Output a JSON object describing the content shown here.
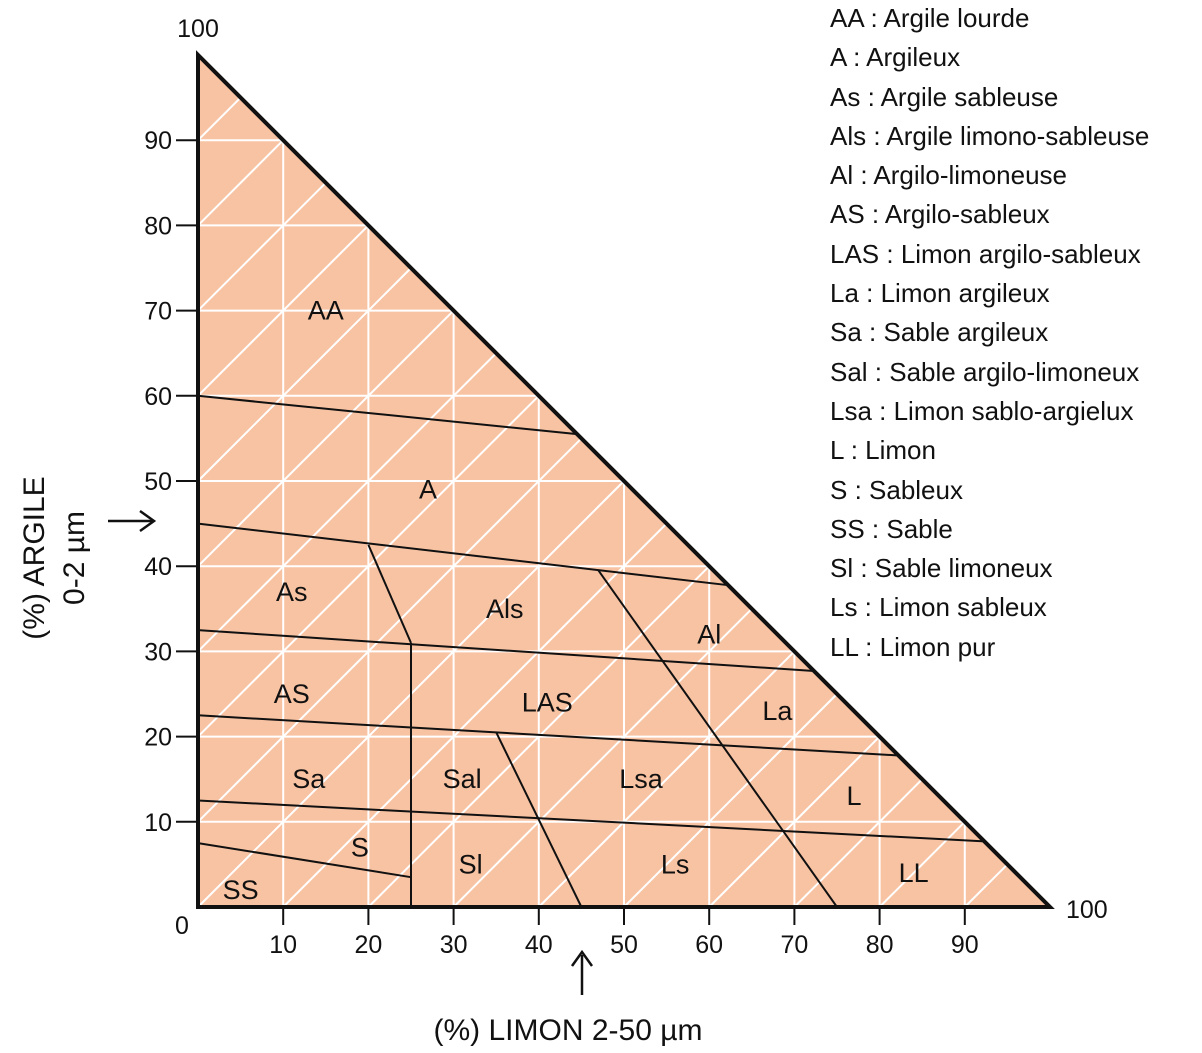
{
  "colors": {
    "fill": "#F8C3A3",
    "gridline": "#FFFFFF",
    "boundary": "#111111"
  },
  "axes": {
    "y_title_line1": "(%) ARGILE",
    "y_title_line2": "0-2 µm",
    "x_title": "(%) LIMON 2-50 µm",
    "y_ticks": [
      "10",
      "20",
      "30",
      "40",
      "50",
      "60",
      "70",
      "80",
      "90"
    ],
    "x_ticks": [
      "10",
      "20",
      "30",
      "40",
      "50",
      "60",
      "70",
      "80",
      "90"
    ],
    "origin": "0",
    "y_max": "100",
    "x_max": "100"
  },
  "zones": [
    {
      "code": "AA",
      "x": 15,
      "y": 70
    },
    {
      "code": "A",
      "x": 27,
      "y": 49
    },
    {
      "code": "As",
      "x": 11,
      "y": 37
    },
    {
      "code": "Als",
      "x": 36,
      "y": 35
    },
    {
      "code": "Al",
      "x": 60,
      "y": 32
    },
    {
      "code": "AS",
      "x": 11,
      "y": 25
    },
    {
      "code": "LAS",
      "x": 41,
      "y": 24
    },
    {
      "code": "La",
      "x": 68,
      "y": 23
    },
    {
      "code": "Sa",
      "x": 13,
      "y": 15
    },
    {
      "code": "Sal",
      "x": 31,
      "y": 15
    },
    {
      "code": "Lsa",
      "x": 52,
      "y": 15
    },
    {
      "code": "L",
      "x": 77,
      "y": 13
    },
    {
      "code": "S",
      "x": 19,
      "y": 7
    },
    {
      "code": "Sl",
      "x": 32,
      "y": 5
    },
    {
      "code": "Ls",
      "x": 56,
      "y": 5
    },
    {
      "code": "LL",
      "x": 84,
      "y": 4
    },
    {
      "code": "SS",
      "x": 5,
      "y": 2
    }
  ],
  "boundaries": [
    [
      [
        0,
        60
      ],
      [
        44.5,
        55.5
      ]
    ],
    [
      [
        0,
        45
      ],
      [
        62,
        37.8
      ]
    ],
    [
      [
        0,
        32.5
      ],
      [
        72.3,
        27.7
      ]
    ],
    [
      [
        0,
        22.5
      ],
      [
        82,
        17.8
      ]
    ],
    [
      [
        0,
        12.5
      ],
      [
        92.3,
        7.7
      ]
    ],
    [
      [
        0,
        7.5
      ],
      [
        25,
        3.5
      ]
    ],
    [
      [
        20,
        42.5
      ],
      [
        25,
        31
      ]
    ],
    [
      [
        25,
        31
      ],
      [
        25,
        0
      ]
    ],
    [
      [
        47,
        39.5
      ],
      [
        75,
        0
      ]
    ],
    [
      [
        35,
        20.5
      ],
      [
        45,
        0
      ]
    ]
  ],
  "legend": [
    "AA : Argile lourde",
    "A : Argileux",
    "As : Argile sableuse",
    "Als : Argile limono-sableuse",
    "Al : Argilo-limoneuse",
    "AS : Argilo-sableux",
    "LAS : Limon argilo-sableux",
    "La : Limon argileux",
    "Sa : Sable argileux",
    "Sal : Sable argilo-limoneux",
    "Lsa : Limon sablo-argielux",
    "L : Limon",
    "S : Sableux",
    "SS : Sable",
    "Sl : Sable limoneux",
    "Ls : Limon sableux",
    "LL : Limon pur"
  ]
}
